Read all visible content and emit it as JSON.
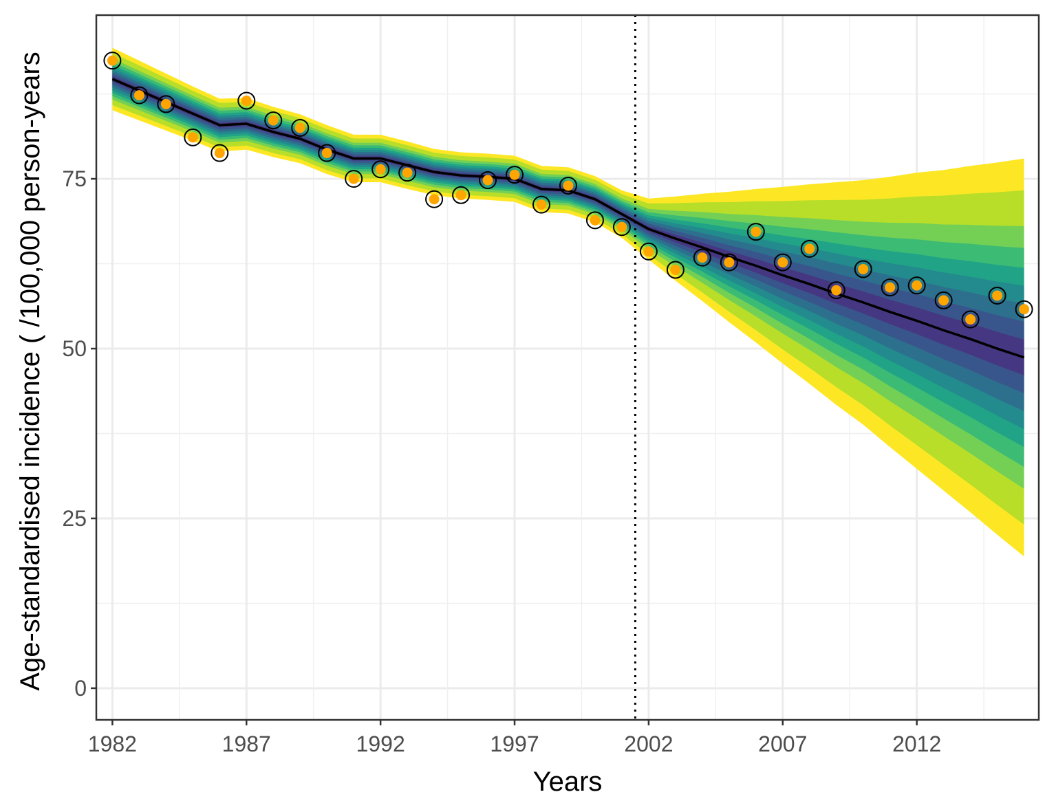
{
  "chart_data": {
    "type": "line",
    "title": "",
    "xlabel": "Years",
    "ylabel": "Age-standardised incidence ( /100,000 person-years",
    "xlim": [
      1981.4,
      2016.55
    ],
    "ylim": [
      -4.66,
      99.1
    ],
    "x_ticks": [
      1982,
      1987,
      1992,
      1997,
      2002,
      2007,
      2012
    ],
    "y_ticks": [
      0,
      25,
      50,
      75
    ],
    "grid": true,
    "forecast_start": 2001.5,
    "years": [
      1982,
      1983,
      1984,
      1985,
      1986,
      1987,
      1988,
      1989,
      1990,
      1991,
      1992,
      1993,
      1994,
      1995,
      1996,
      1997,
      1998,
      1999,
      2000,
      2001,
      2002,
      2003,
      2004,
      2005,
      2006,
      2007,
      2008,
      2009,
      2010,
      2011,
      2012,
      2013,
      2014,
      2015,
      2016
    ],
    "observed": [
      92.4,
      87.3,
      86.0,
      81.1,
      78.8,
      86.5,
      83.6,
      82.5,
      78.8,
      75.0,
      76.4,
      75.9,
      72.0,
      72.6,
      74.8,
      75.6,
      71.2,
      74.0,
      68.9,
      67.9,
      64.3,
      61.6,
      63.4,
      62.7,
      67.2,
      62.7,
      64.7,
      58.6,
      61.7,
      59.0,
      59.3,
      57.1,
      54.3,
      57.8,
      55.8
    ],
    "fitted": [
      89.7,
      88.0,
      86.3,
      84.6,
      82.9,
      83.1,
      81.9,
      80.9,
      79.3,
      78.0,
      78.0,
      77.0,
      76.0,
      75.5,
      75.3,
      75.0,
      73.5,
      73.3,
      72.0,
      69.8,
      67.6,
      66.2,
      64.9,
      63.5,
      62.2,
      60.8,
      59.5,
      58.1,
      56.8,
      55.4,
      54.1,
      52.7,
      51.4,
      50.0,
      48.7
    ],
    "outer_interval_halfwidth": [
      4.6,
      4.4,
      4.2,
      4.0,
      3.9,
      3.8,
      3.7,
      3.6,
      3.6,
      3.5,
      3.5,
      3.5,
      3.4,
      3.4,
      3.4,
      3.4,
      3.4,
      3.4,
      3.4,
      3.5,
      4.5,
      6.2,
      7.9,
      9.6,
      11.3,
      13.0,
      14.7,
      16.4,
      18.0,
      19.9,
      21.8,
      23.6,
      25.5,
      27.4,
      29.3
    ],
    "band_fractions": [
      1.0,
      0.84,
      0.66,
      0.55,
      0.45,
      0.36,
      0.27,
      0.18,
      0.09
    ],
    "band_colors": [
      "#FDE725",
      "#B8DE29",
      "#73D055",
      "#3CBB75",
      "#20A386",
      "#238A8D",
      "#2D708E",
      "#39568C",
      "#453781"
    ],
    "point_color": "#FFA500"
  }
}
